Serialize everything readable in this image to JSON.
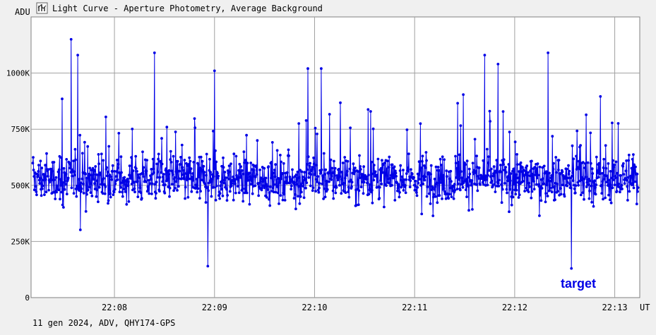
{
  "window": {
    "title": "Light Curve - Aperture Photometry, Average Background",
    "icon": "light-curve-icon"
  },
  "footer": {
    "caption": "11 gen 2024, ADV, QHY174-GPS"
  },
  "colors": {
    "background": "#f0f0f0",
    "plot_background": "#ffffff",
    "grid": "#a0a0a0",
    "series": "#0000e6",
    "label_text": "#000000"
  },
  "chart_data": {
    "type": "scatter",
    "title": "",
    "xlabel": "UT",
    "ylabel": "ADU",
    "grid": true,
    "y_ticks": [
      0,
      250000,
      500000,
      750000,
      1000000
    ],
    "y_tick_labels": [
      "0",
      "250K",
      "500K",
      "750K",
      "1000K"
    ],
    "ylim": [
      0,
      1250000
    ],
    "x_ticks": [
      "22:08",
      "22:09",
      "22:10",
      "22:11",
      "22:12",
      "22:13"
    ],
    "xlim": [
      "22:07:10",
      "22:13:15"
    ],
    "series": [
      {
        "name": "target",
        "style": "line with markers",
        "mean": 530000,
        "typical_min": 200000,
        "typical_max": 1000000,
        "outliers": [
          {
            "x": "22:07:34",
            "y": 1150000
          },
          {
            "x": "22:07:38",
            "y": 1080000
          },
          {
            "x": "22:08:24",
            "y": 1090000
          },
          {
            "x": "22:09:00",
            "y": 1010000
          },
          {
            "x": "22:09:56",
            "y": 1020000
          },
          {
            "x": "22:10:04",
            "y": 1020000
          },
          {
            "x": "22:11:42",
            "y": 1080000
          },
          {
            "x": "22:11:50",
            "y": 1040000
          },
          {
            "x": "22:12:20",
            "y": 1090000
          },
          {
            "x": "22:12:34",
            "y": 130000
          },
          {
            "x": "22:08:56",
            "y": 140000
          }
        ]
      }
    ]
  }
}
